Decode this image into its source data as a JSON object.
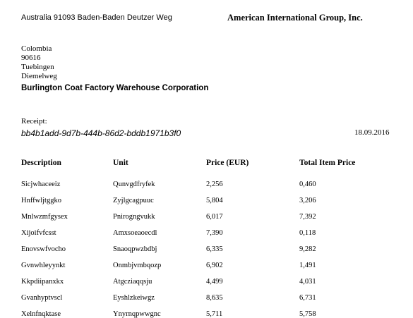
{
  "sender_line": "Australia 91093 Baden-Baden Deutzer Weg",
  "company_name": "American International Group, Inc.",
  "recipient_address": [
    "Colombia",
    "90616",
    "Tuebingen",
    "Diemelweg"
  ],
  "recipient_name": "Burlington Coat Factory Warehouse Corporation",
  "receipt_label": "Receipt:",
  "receipt_id": "bb4b1add-9d7b-444b-86d2-bddb1971b3f0",
  "receipt_date": "18.09.2016",
  "table": {
    "headers": [
      "Description",
      "Unit",
      "Price (EUR)",
      "Total Item Price"
    ],
    "rows": [
      [
        "Sicjwhaceeiz",
        "Qunvgdfryfek",
        "2,256",
        "0,460"
      ],
      [
        "Hnffwljtggko",
        "Zyjlgcagpuuc",
        "5,804",
        "3,206"
      ],
      [
        "Mnlwzmfgysex",
        "Pnirogngvukk",
        "6,017",
        "7,392"
      ],
      [
        "Xijoifvfcsst",
        "Amxsoeaoecdl",
        "7,390",
        "0,118"
      ],
      [
        "Enovswfvocho",
        "Snaoqpwzbdbj",
        "6,335",
        "9,282"
      ],
      [
        "Gvnwhleyynkt",
        "Onmbjvmbqozp",
        "6,902",
        "1,491"
      ],
      [
        "Kkpdiipanxkx",
        "Atgcziaqqsju",
        "4,499",
        "4,031"
      ],
      [
        "Gvanhyptvscl",
        "Eyshlzkeiwgz",
        "8,635",
        "6,731"
      ],
      [
        "Xelnfnqktase",
        "Ynyrnqpwwgnc",
        "5,711",
        "5,758"
      ]
    ]
  }
}
